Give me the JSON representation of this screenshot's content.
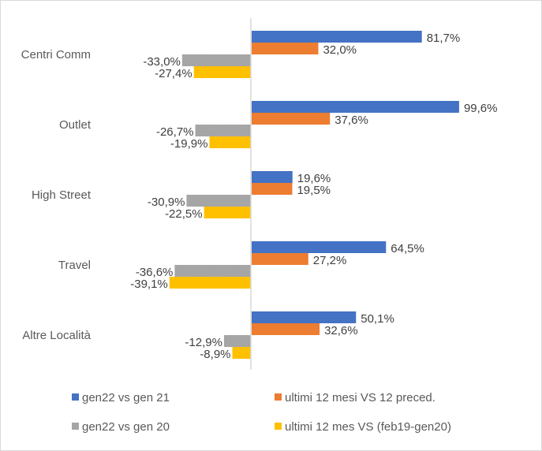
{
  "chart_data": {
    "type": "bar",
    "orientation": "horizontal",
    "categories": [
      "Centri Comm",
      "Outlet",
      "High Street",
      "Travel",
      "Altre Località"
    ],
    "series": [
      {
        "name": "gen22 vs gen 21",
        "color": "#4472C4",
        "values": [
          81.7,
          99.6,
          19.6,
          64.5,
          50.1
        ],
        "labels": [
          "81,7%",
          "99,6%",
          "19,6%",
          "64,5%",
          "50,1%"
        ]
      },
      {
        "name": "ultimi 12 mesi VS 12 preced.",
        "color": "#ED7D31",
        "values": [
          32.0,
          37.6,
          19.5,
          27.2,
          32.6
        ],
        "labels": [
          "32,0%",
          "37,6%",
          "19,5%",
          "27,2%",
          "32,6%"
        ]
      },
      {
        "name": "gen22 vs gen 20",
        "color": "#A5A5A5",
        "pattern": "dotted",
        "values": [
          -33.0,
          -26.7,
          -30.9,
          -36.6,
          -12.9
        ],
        "labels": [
          "-33,0%",
          "-26,7%",
          "-30,9%",
          "-36,6%",
          "-12,9%"
        ]
      },
      {
        "name": "ultimi 12 mes VS (feb19-gen20)",
        "color": "#FFC000",
        "values": [
          -27.4,
          -19.9,
          -22.5,
          -39.1,
          -8.9
        ],
        "labels": [
          "-27,4%",
          "-19,9%",
          "-22,5%",
          "-39,1%",
          "-8,9%"
        ]
      }
    ],
    "unit": "%",
    "grid": false,
    "legend": "bottom"
  }
}
